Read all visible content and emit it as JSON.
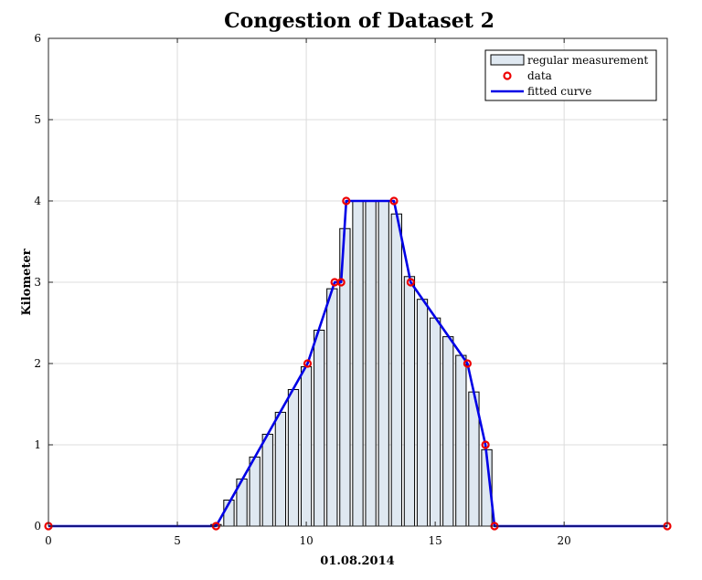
{
  "chart_data": {
    "type": "bar",
    "title": "Congestion of Dataset 2",
    "xlabel": "01.08.2014",
    "ylabel": "Kilometer",
    "xlim": [
      0,
      24
    ],
    "ylim": [
      0,
      6
    ],
    "xticks": [
      0,
      5,
      10,
      15,
      20
    ],
    "yticks": [
      0,
      1,
      2,
      3,
      4,
      5,
      6
    ],
    "grid": true,
    "legend_position": "top-right",
    "series": [
      {
        "name": "regular measurement",
        "kind": "bar",
        "color": "#dfe8f1",
        "bar_width": 0.4,
        "x": [
          6.5,
          7.0,
          7.5,
          8.0,
          8.5,
          9.0,
          9.5,
          10.0,
          10.5,
          11.0,
          11.5,
          12.0,
          12.5,
          13.0,
          13.5,
          14.0,
          14.5,
          15.0,
          15.5,
          16.0,
          16.5,
          17.0
        ],
        "values": [
          0.02,
          0.32,
          0.58,
          0.85,
          1.13,
          1.4,
          1.68,
          1.96,
          2.41,
          2.92,
          3.66,
          4.0,
          4.0,
          4.0,
          3.84,
          3.07,
          2.79,
          2.56,
          2.33,
          2.1,
          1.65,
          0.94
        ]
      },
      {
        "name": "data",
        "kind": "scatter",
        "color": "#ee0000",
        "x": [
          0,
          6.5,
          10.05,
          11.1,
          11.35,
          11.55,
          13.4,
          14.05,
          16.25,
          16.95,
          17.3,
          24
        ],
        "y": [
          0,
          0,
          2,
          3,
          3,
          4,
          4,
          3,
          2,
          1,
          0,
          0
        ]
      },
      {
        "name": "fitted curve",
        "kind": "line",
        "color": "#0000e6",
        "x": [
          0,
          6.5,
          10.05,
          11.1,
          11.35,
          11.55,
          13.4,
          14.05,
          16.25,
          16.95,
          17.3,
          24
        ],
        "y": [
          0,
          0,
          2,
          3,
          3,
          4,
          4,
          3,
          2,
          1,
          0,
          0
        ]
      }
    ]
  }
}
